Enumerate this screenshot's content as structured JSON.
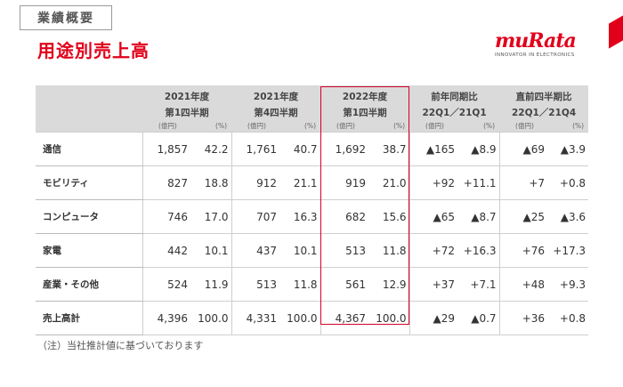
{
  "header": {
    "section_tag": "業績概要",
    "title": "用途別売上高",
    "logo_text": "muRata",
    "logo_tagline": "INNOVATOR IN ELECTRONICS"
  },
  "colors": {
    "brand_red": "#e1001a",
    "highlight_border": "#d4002a",
    "header_bg": "#dadada"
  },
  "table": {
    "columns": [
      {
        "line1": "2021年度",
        "line2": "第1四半期",
        "unit_a": "(億円)",
        "unit_b": "(%)"
      },
      {
        "line1": "2021年度",
        "line2": "第4四半期",
        "unit_a": "(億円)",
        "unit_b": "(%)"
      },
      {
        "line1": "2022年度",
        "line2": "第1四半期",
        "unit_a": "(億円)",
        "unit_b": "(%)"
      },
      {
        "line1": "前年同期比",
        "line2": "22Q1／21Q1",
        "unit_a": "(億円)",
        "unit_b": "(%)"
      },
      {
        "line1": "直前四半期比",
        "line2": "22Q1／21Q4",
        "unit_a": "(億円)",
        "unit_b": "(%)"
      }
    ],
    "rows": [
      {
        "label": "通信",
        "values": [
          "1,857",
          "42.2",
          "1,761",
          "40.7",
          "1,692",
          "38.7",
          "▲165",
          "▲8.9",
          "▲69",
          "▲3.9"
        ]
      },
      {
        "label": "モビリティ",
        "values": [
          "827",
          "18.8",
          "912",
          "21.1",
          "919",
          "21.0",
          "+92",
          "+11.1",
          "+7",
          "+0.8"
        ]
      },
      {
        "label": "コンピュータ",
        "values": [
          "746",
          "17.0",
          "707",
          "16.3",
          "682",
          "15.6",
          "▲65",
          "▲8.7",
          "▲25",
          "▲3.6"
        ]
      },
      {
        "label": "家電",
        "values": [
          "442",
          "10.1",
          "437",
          "10.1",
          "513",
          "11.8",
          "+72",
          "+16.3",
          "+76",
          "+17.3"
        ]
      },
      {
        "label": "産業・その他",
        "values": [
          "524",
          "11.9",
          "513",
          "11.8",
          "561",
          "12.9",
          "+37",
          "+7.1",
          "+48",
          "+9.3"
        ]
      },
      {
        "label": "売上高計",
        "values": [
          "4,396",
          "100.0",
          "4,331",
          "100.0",
          "4,367",
          "100.0",
          "▲29",
          "▲0.7",
          "+36",
          "+0.8"
        ]
      }
    ]
  },
  "footnote": "（注）当社推計値に基づいております"
}
